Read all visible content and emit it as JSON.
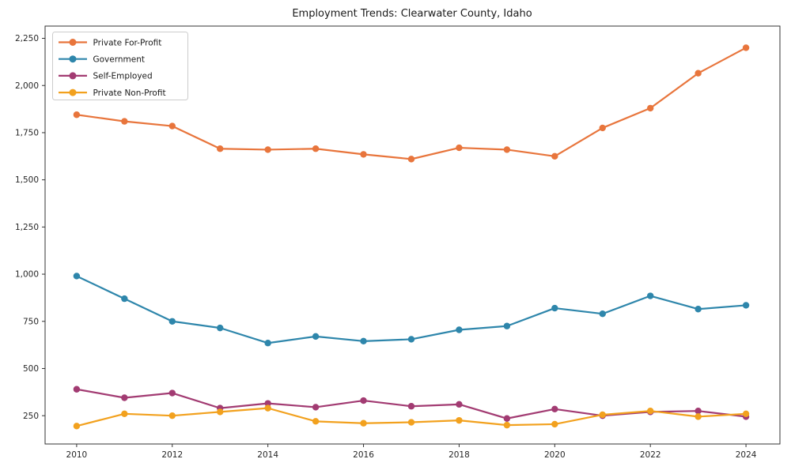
{
  "chart_data": {
    "type": "line",
    "title": "Employment Trends: Clearwater County, Idaho",
    "x": [
      2010,
      2011,
      2012,
      2013,
      2014,
      2015,
      2016,
      2017,
      2018,
      2019,
      2020,
      2021,
      2022,
      2023,
      2024
    ],
    "series": [
      {
        "name": "Private For-Profit",
        "color": "#E8753C",
        "values": [
          1845,
          1810,
          1785,
          1665,
          1660,
          1665,
          1635,
          1610,
          1670,
          1660,
          1625,
          1775,
          1880,
          2065,
          2200
        ]
      },
      {
        "name": "Government",
        "color": "#2E86AB",
        "values": [
          990,
          870,
          750,
          715,
          635,
          670,
          645,
          655,
          705,
          725,
          820,
          790,
          885,
          815,
          835
        ]
      },
      {
        "name": "Self-Employed",
        "color": "#A23B72",
        "values": [
          390,
          345,
          370,
          290,
          315,
          295,
          330,
          300,
          310,
          235,
          285,
          250,
          270,
          275,
          245
        ]
      },
      {
        "name": "Private Non-Profit",
        "color": "#F2A11E",
        "values": [
          195,
          260,
          250,
          270,
          290,
          220,
          210,
          215,
          225,
          200,
          205,
          255,
          275,
          245,
          260
        ]
      }
    ],
    "xlabel": "",
    "ylabel": "",
    "xticks": [
      2010,
      2012,
      2014,
      2016,
      2018,
      2020,
      2022,
      2024
    ],
    "yticks": [
      250,
      500,
      750,
      1000,
      1250,
      1500,
      1750,
      2000,
      2250
    ],
    "xlim": [
      2009.34,
      2024.71
    ],
    "ylim": [
      100,
      2315
    ],
    "grid": false,
    "legend": {
      "position": "upper-left",
      "entries": [
        "Private For-Profit",
        "Government",
        "Self-Employed",
        "Private Non-Profit"
      ]
    },
    "colors": {
      "text": "#1a1a1a",
      "spine": "#333333",
      "background": "#ffffff",
      "legend_border": "#cccccc"
    }
  }
}
